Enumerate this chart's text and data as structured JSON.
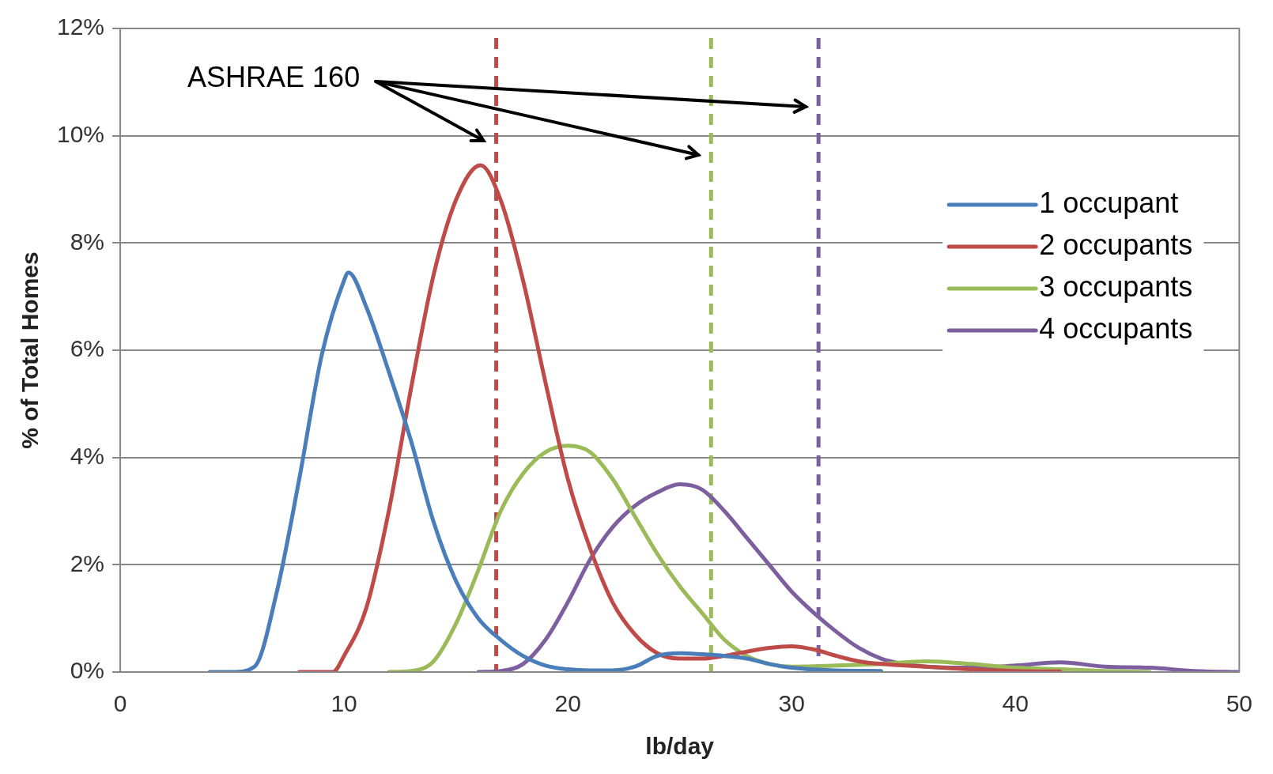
{
  "chart_data": {
    "type": "line",
    "xlabel": "lb/day",
    "ylabel": "% of Total Homes",
    "xlim": [
      0,
      50
    ],
    "xticks": [
      0,
      10,
      20,
      30,
      40,
      50
    ],
    "ylim": [
      0,
      12
    ],
    "yticks": [
      {
        "value": 0,
        "label": "0%"
      },
      {
        "value": 2,
        "label": "2%"
      },
      {
        "value": 4,
        "label": "4%"
      },
      {
        "value": 6,
        "label": "6%"
      },
      {
        "value": 8,
        "label": "8%"
      },
      {
        "value": 10,
        "label": "10%"
      },
      {
        "value": 12,
        "label": "12%"
      }
    ],
    "grid": "y",
    "legend": "right",
    "marker": "none",
    "line_style": "solid",
    "series": [
      {
        "name": "1 occupant",
        "color": "#4a7ebb",
        "x": [
          4,
          5,
          6,
          7,
          8,
          9,
          10,
          10.2,
          11,
          12,
          13,
          14,
          15,
          16,
          17,
          18,
          19,
          20,
          21,
          22,
          23,
          24,
          25,
          26,
          27,
          28,
          29,
          30,
          32,
          34
        ],
        "values": [
          0,
          0,
          0.1,
          1.5,
          3.6,
          5.9,
          7.3,
          7.45,
          6.8,
          5.6,
          4.3,
          2.8,
          1.7,
          1.0,
          0.6,
          0.3,
          0.12,
          0.05,
          0.03,
          0.03,
          0.1,
          0.3,
          0.35,
          0.33,
          0.3,
          0.25,
          0.15,
          0.08,
          0.03,
          0.02
        ]
      },
      {
        "name": "2 occupants",
        "color": "#be4b48",
        "x": [
          8,
          9,
          9.5,
          10,
          11,
          12,
          13,
          14,
          15,
          16.1,
          17,
          18,
          19,
          20,
          21,
          22,
          23,
          24,
          25,
          26,
          27,
          28,
          29,
          30,
          31,
          32,
          33,
          34,
          36,
          38,
          40,
          42
        ],
        "values": [
          0,
          0,
          0,
          0.3,
          1.2,
          3.0,
          5.3,
          7.4,
          8.8,
          9.45,
          8.8,
          7.3,
          5.4,
          3.6,
          2.3,
          1.3,
          0.7,
          0.35,
          0.25,
          0.25,
          0.3,
          0.38,
          0.45,
          0.48,
          0.42,
          0.3,
          0.2,
          0.15,
          0.1,
          0.05,
          0.02,
          0.01
        ]
      },
      {
        "name": "3 occupants",
        "color": "#9bbb59",
        "x": [
          12,
          13,
          14,
          15,
          16,
          17,
          18,
          19,
          20,
          21,
          22,
          23,
          24,
          25,
          26,
          27,
          28,
          29,
          30,
          32,
          34,
          36,
          38,
          40,
          42,
          44,
          46
        ],
        "values": [
          0,
          0.02,
          0.2,
          0.9,
          1.9,
          3.0,
          3.7,
          4.1,
          4.22,
          4.1,
          3.6,
          2.9,
          2.2,
          1.6,
          1.1,
          0.6,
          0.3,
          0.15,
          0.1,
          0.12,
          0.15,
          0.2,
          0.15,
          0.08,
          0.05,
          0.02,
          0
        ]
      },
      {
        "name": "4 occupants",
        "color": "#7d5fa0",
        "x": [
          16,
          17,
          18,
          19,
          20,
          21,
          22,
          23,
          24,
          25,
          26,
          27,
          28,
          29,
          30,
          31,
          32,
          33,
          34,
          35,
          36,
          38,
          40,
          42,
          44,
          46,
          48,
          50
        ],
        "values": [
          0,
          0.02,
          0.15,
          0.6,
          1.3,
          2.1,
          2.7,
          3.1,
          3.35,
          3.5,
          3.4,
          3.0,
          2.5,
          2.0,
          1.5,
          1.1,
          0.75,
          0.45,
          0.25,
          0.15,
          0.1,
          0.08,
          0.12,
          0.18,
          0.1,
          0.08,
          0.02,
          0
        ]
      }
    ],
    "ref_lines": [
      {
        "axis": "x",
        "value": 16.8,
        "label": null,
        "color": "#be4b48",
        "line_style": "dashed"
      },
      {
        "axis": "x",
        "value": 26.4,
        "label": null,
        "color": "#9bbb59",
        "line_style": "dashed"
      },
      {
        "axis": "x",
        "value": 31.2,
        "label": null,
        "color": "#7d5fa0",
        "line_style": "dashed"
      }
    ],
    "annotations": [
      "ASHRAE 160"
    ]
  }
}
